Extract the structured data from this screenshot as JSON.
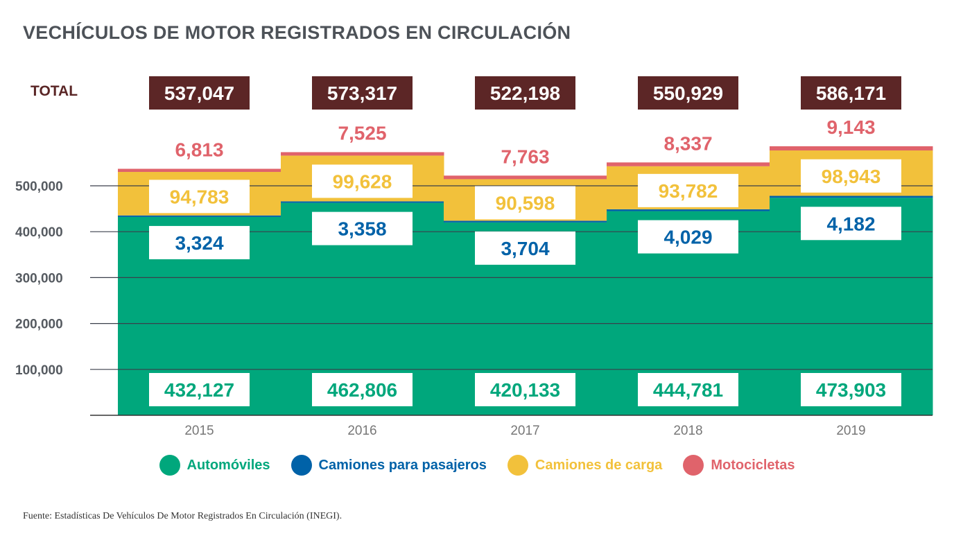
{
  "title": "VECHÍCULOS DE MOTOR REGISTRADOS EN CIRCULACIÓN",
  "total_label": "TOTAL",
  "source": "Fuente:  Estadísticas De Vehículos De Motor Registrados En Circulación (INEGI).",
  "chart_data": {
    "type": "area",
    "stacked": true,
    "title": "VECHÍCULOS DE MOTOR REGISTRADOS EN CIRCULACIÓN",
    "categories": [
      "2015",
      "2016",
      "2017",
      "2018",
      "2019"
    ],
    "totals": [
      "537,047",
      "573,317",
      "522,198",
      "550,929",
      "586,171"
    ],
    "series": [
      {
        "name": "Automóviles",
        "color": "#00a77c",
        "values": [
          432127,
          462806,
          420133,
          444781,
          473903
        ],
        "labels": [
          "432,127",
          "462,806",
          "420,133",
          "444,781",
          "473,903"
        ]
      },
      {
        "name": "Camiones para pasajeros",
        "color": "#0062a8",
        "values": [
          3324,
          3358,
          3704,
          4029,
          4182
        ],
        "labels": [
          "3,324",
          "3,358",
          "3,704",
          "4,029",
          "4,182"
        ]
      },
      {
        "name": "Camiones de carga",
        "color": "#f2c13b",
        "values": [
          94783,
          99628,
          90598,
          93782,
          98943
        ],
        "labels": [
          "94,783",
          "99,628",
          "90,598",
          "93,782",
          "98,943"
        ]
      },
      {
        "name": "Motocicletas",
        "color": "#e0636b",
        "values": [
          6813,
          7525,
          7763,
          8337,
          9143
        ],
        "labels": [
          "6,813",
          "7,525",
          "7,763",
          "8,337",
          "9,143"
        ]
      }
    ],
    "yticks": [
      "100,000",
      "200,000",
      "300,000",
      "400,000",
      "500,000"
    ],
    "ytick_values": [
      100000,
      200000,
      300000,
      400000,
      500000
    ],
    "ylim": [
      0,
      600000
    ],
    "grid": true,
    "legend_position": "bottom",
    "xlabel": "",
    "ylabel": ""
  }
}
